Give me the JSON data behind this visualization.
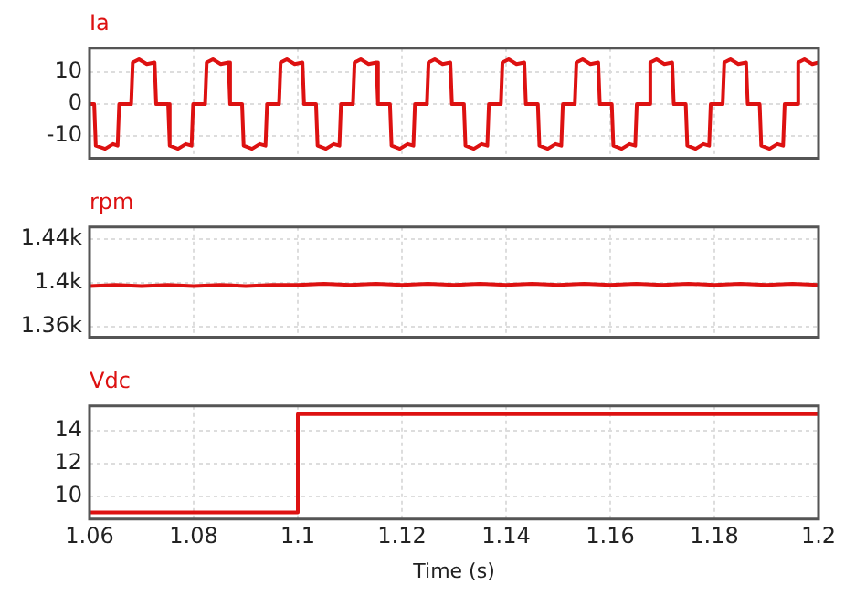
{
  "chart_data": [
    {
      "type": "line",
      "title": "Ia",
      "color": "#dd1111",
      "marker": "none",
      "grid": true,
      "tick_labels": "y",
      "xlim": [
        1.06,
        1.2
      ],
      "xticks": [
        1.06,
        1.08,
        1.1,
        1.12,
        1.14,
        1.16,
        1.18,
        1.2
      ],
      "ylim": [
        -17,
        17.5
      ],
      "yticks": [
        -10,
        0,
        10
      ],
      "x": [
        1.06,
        1.0609,
        1.0612,
        1.063,
        1.0645,
        1.0654,
        1.0657,
        1.068,
        1.0683,
        1.0695,
        1.071,
        1.0725,
        1.0728,
        1.0751,
        1.0754,
        1.077,
        1.0785,
        1.0796,
        1.0799,
        1.0822,
        1.0825,
        1.0837,
        1.0852,
        1.0867,
        1.087,
        1.0893,
        1.0896,
        1.0912,
        1.0927,
        1.0938,
        1.0941,
        1.0964,
        1.0967,
        1.0979,
        1.0994,
        1.1009,
        1.1012,
        1.1035,
        1.1038,
        1.1054,
        1.1069,
        1.108,
        1.1083,
        1.1106,
        1.1109,
        1.1121,
        1.1136,
        1.1151,
        1.1154,
        1.1177,
        1.118,
        1.1196,
        1.1211,
        1.1222,
        1.1225,
        1.1248,
        1.1251,
        1.1263,
        1.1278,
        1.1293,
        1.1296,
        1.1319,
        1.1322,
        1.1338,
        1.1353,
        1.1364,
        1.1367,
        1.139,
        1.1393,
        1.1405,
        1.142,
        1.1435,
        1.1438,
        1.1461,
        1.1464,
        1.148,
        1.1495,
        1.1506,
        1.1509,
        1.1532,
        1.1535,
        1.1547,
        1.1562,
        1.1577,
        1.158,
        1.1603,
        1.1606,
        1.1622,
        1.1637,
        1.1648,
        1.1651,
        1.1674,
        1.1677,
        1.1689,
        1.1704,
        1.1719,
        1.1722,
        1.1745,
        1.1748,
        1.1764,
        1.1779,
        1.179,
        1.1793,
        1.1816,
        1.1819,
        1.1831,
        1.1846,
        1.1861,
        1.1864,
        1.1887,
        1.189,
        1.1906,
        1.1921,
        1.1932,
        1.1935,
        1.1958,
        1.1961,
        1.1973,
        1.1988,
        1.2
      ],
      "values": [
        0,
        0,
        -13,
        -14,
        -12.5,
        -13,
        0,
        0,
        13,
        14,
        12.5,
        13,
        0,
        0,
        -13,
        -14,
        -12.5,
        -13,
        0,
        0,
        13,
        14,
        12.5,
        13,
        0,
        0,
        -13,
        -14,
        -12.5,
        -13,
        0,
        0,
        13,
        14,
        12.5,
        13,
        0,
        0,
        -13,
        -14,
        -12.5,
        -13,
        0,
        0,
        13,
        14,
        12.5,
        13,
        0,
        0,
        -13,
        -14,
        -12.5,
        -13,
        0,
        0,
        13,
        14,
        12.5,
        13,
        0,
        0,
        -13,
        -14,
        -12.5,
        -13,
        0,
        0,
        13,
        14,
        12.5,
        13,
        0,
        0,
        -13,
        -14,
        -12.5,
        -13,
        0,
        0,
        13,
        14,
        12.5,
        13,
        0,
        0,
        -13,
        -14,
        -12.5,
        -13,
        0,
        0,
        13,
        14,
        12.5,
        13,
        0,
        0,
        -13,
        -14,
        -12.5,
        -13,
        0,
        0,
        13,
        14,
        12.5,
        13,
        0,
        0,
        -13,
        -14,
        -12.5,
        -13,
        0,
        0,
        13,
        14,
        12.5,
        13
      ]
    },
    {
      "type": "line",
      "title": "rpm",
      "color": "#dd1111",
      "marker": "none",
      "grid": true,
      "tick_labels": "y",
      "xlim": [
        1.06,
        1.2
      ],
      "xticks": [
        1.06,
        1.08,
        1.1,
        1.12,
        1.14,
        1.16,
        1.18,
        1.2
      ],
      "ylim": [
        1350,
        1451
      ],
      "yticks": [
        {
          "value": 1360,
          "label": "1.36k"
        },
        {
          "value": 1400,
          "label": "1.4k"
        },
        {
          "value": 1440,
          "label": "1.44k"
        }
      ],
      "x": [
        1.06,
        1.065,
        1.07,
        1.075,
        1.08,
        1.085,
        1.09,
        1.095,
        1.1,
        1.105,
        1.11,
        1.115,
        1.12,
        1.125,
        1.13,
        1.135,
        1.14,
        1.145,
        1.15,
        1.155,
        1.16,
        1.165,
        1.17,
        1.175,
        1.18,
        1.185,
        1.19,
        1.195,
        1.2
      ],
      "values": [
        1397,
        1398,
        1397,
        1398,
        1397,
        1398,
        1397,
        1398,
        1398,
        1399,
        1398,
        1399,
        1398,
        1399,
        1398,
        1399,
        1398,
        1399,
        1398,
        1399,
        1398,
        1399,
        1398,
        1399,
        1398,
        1399,
        1398,
        1399,
        1398
      ]
    },
    {
      "type": "line",
      "title": "Vdc",
      "xlabel": "Time (s)",
      "color": "#dd1111",
      "marker": "none",
      "grid": true,
      "xlim": [
        1.06,
        1.2
      ],
      "xticks": [
        1.06,
        1.08,
        1.1,
        1.12,
        1.14,
        1.16,
        1.18,
        1.2
      ],
      "ylim": [
        8.6,
        15.5
      ],
      "yticks": [
        10,
        12,
        14
      ],
      "x": [
        1.06,
        1.1,
        1.1,
        1.2
      ],
      "values": [
        9,
        9,
        15,
        15
      ]
    }
  ]
}
